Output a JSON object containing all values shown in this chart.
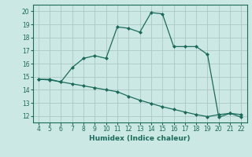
{
  "xlabel": "Humidex (Indice chaleur)",
  "xlim": [
    3.5,
    22.5
  ],
  "ylim": [
    11.5,
    20.5
  ],
  "xticks": [
    4,
    5,
    6,
    7,
    8,
    9,
    10,
    11,
    12,
    13,
    14,
    15,
    16,
    17,
    18,
    19,
    20,
    21,
    22
  ],
  "yticks": [
    12,
    13,
    14,
    15,
    16,
    17,
    18,
    19,
    20
  ],
  "bg_color": "#cce8e4",
  "line_color": "#1a6b5a",
  "grid_color": "#aac8c4",
  "main_x": [
    4,
    5,
    6,
    7,
    8,
    9,
    10,
    11,
    12,
    13,
    14,
    15,
    16,
    17,
    18,
    19,
    20,
    21,
    22
  ],
  "main_y": [
    14.8,
    14.8,
    14.6,
    15.7,
    16.4,
    16.6,
    16.4,
    18.8,
    18.7,
    18.4,
    19.9,
    19.8,
    17.3,
    17.3,
    17.3,
    16.7,
    11.9,
    12.2,
    11.9
  ],
  "trend_x": [
    4,
    5,
    6,
    7,
    8,
    9,
    10,
    11,
    12,
    13,
    14,
    15,
    16,
    17,
    18,
    19,
    20,
    21,
    22
  ],
  "trend_y": [
    14.8,
    14.75,
    14.6,
    14.45,
    14.3,
    14.15,
    14.0,
    13.85,
    13.5,
    13.2,
    12.95,
    12.7,
    12.5,
    12.3,
    12.1,
    11.95,
    12.1,
    12.2,
    12.1
  ]
}
